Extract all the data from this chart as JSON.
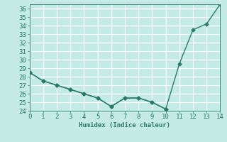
{
  "xlabel": "Humidex (Indice chaleur)",
  "line1_x": [
    0,
    1,
    2,
    3,
    4,
    5,
    6,
    7,
    8,
    9,
    10,
    11,
    12,
    13,
    14
  ],
  "line1_y": [
    28.5,
    27.5,
    27.0,
    26.5,
    26.0,
    25.5,
    24.5,
    25.5,
    25.5,
    25.0,
    24.2,
    29.5,
    33.5,
    34.2,
    36.5
  ],
  "line2_x": [
    0,
    1,
    2,
    3,
    4,
    5,
    6,
    7,
    8,
    9,
    10
  ],
  "line2_y": [
    28.5,
    27.5,
    27.0,
    26.5,
    26.0,
    25.5,
    24.5,
    25.5,
    25.5,
    25.0,
    24.2
  ],
  "line_color": "#2a7a6a",
  "bg_color": "#c5ebe6",
  "grid_color": "#ffffff",
  "xlim": [
    0,
    14
  ],
  "ylim": [
    24,
    36.5
  ],
  "yticks": [
    24,
    25,
    26,
    27,
    28,
    29,
    30,
    31,
    32,
    33,
    34,
    35,
    36
  ],
  "xticks": [
    0,
    1,
    2,
    3,
    4,
    5,
    6,
    7,
    8,
    9,
    10,
    11,
    12,
    13,
    14
  ],
  "marker": "D",
  "marker_size": 2.5,
  "linewidth": 1.0,
  "font_size": 6.5
}
